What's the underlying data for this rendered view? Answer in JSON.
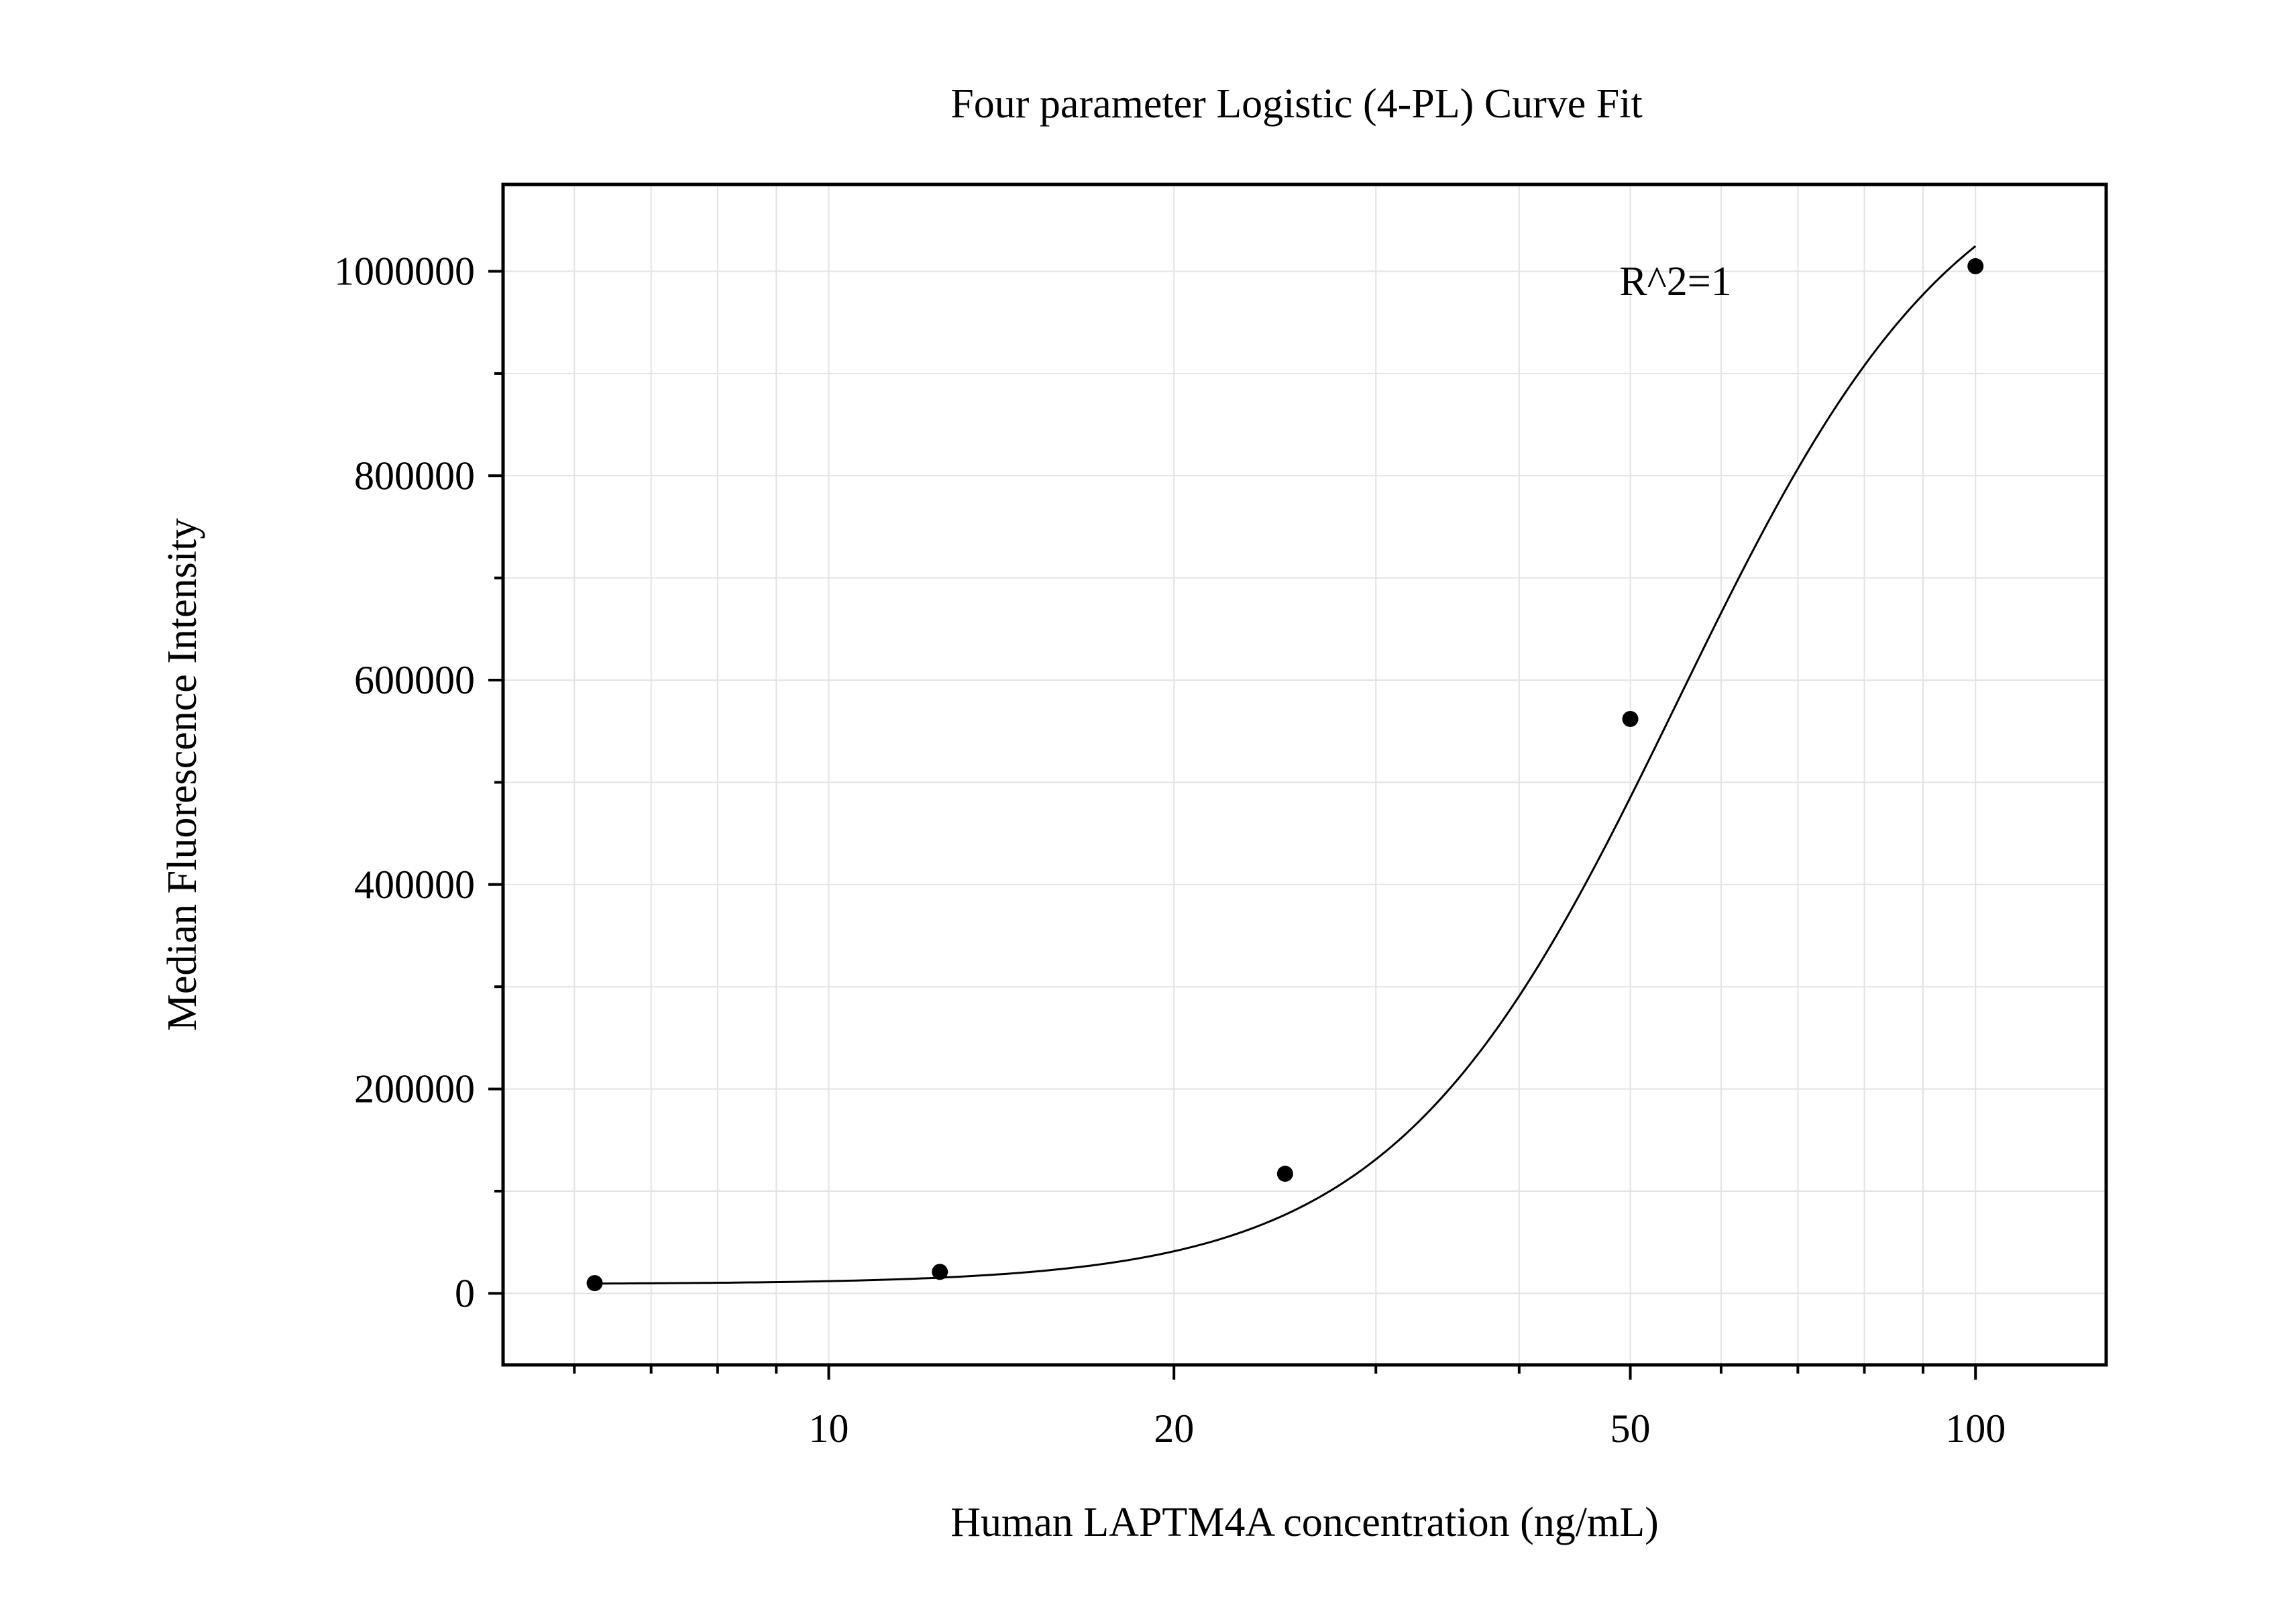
{
  "chart_data": {
    "type": "scatter",
    "title": "Four parameter Logistic (4-PL) Curve Fit",
    "xlabel": "Human LAPTM4A concentration (ng/mL)",
    "ylabel": "Median Fluorescence Intensity",
    "x_scale": "log",
    "xlim": [
      5.2,
      130
    ],
    "ylim": [
      -70000,
      1085000
    ],
    "x_ticks": [
      10,
      20,
      50,
      100
    ],
    "x_tick_labels": [
      "10",
      "20",
      "50",
      "100"
    ],
    "y_ticks": [
      0,
      200000,
      400000,
      600000,
      800000,
      1000000
    ],
    "y_tick_labels": [
      "0",
      "200000",
      "400000",
      "600000",
      "800000",
      "1000000"
    ],
    "grid": true,
    "legend": "none",
    "annotation": "R^2=1",
    "series": [
      {
        "marker": "circle",
        "x": [
          6.25,
          12.5,
          25,
          50,
          100
        ],
        "y": [
          10000,
          21000,
          117000,
          562000,
          1005000
        ]
      }
    ],
    "fit_curve": {
      "model": "4PL",
      "params": {
        "A": 9000,
        "B": 3.5,
        "C": 55,
        "D": 1150000
      },
      "x_range": [
        6.25,
        100
      ]
    },
    "colors": {
      "marker": "#000000",
      "line": "#000000",
      "grid": "#e3e3e3",
      "axis": "#000000"
    }
  }
}
